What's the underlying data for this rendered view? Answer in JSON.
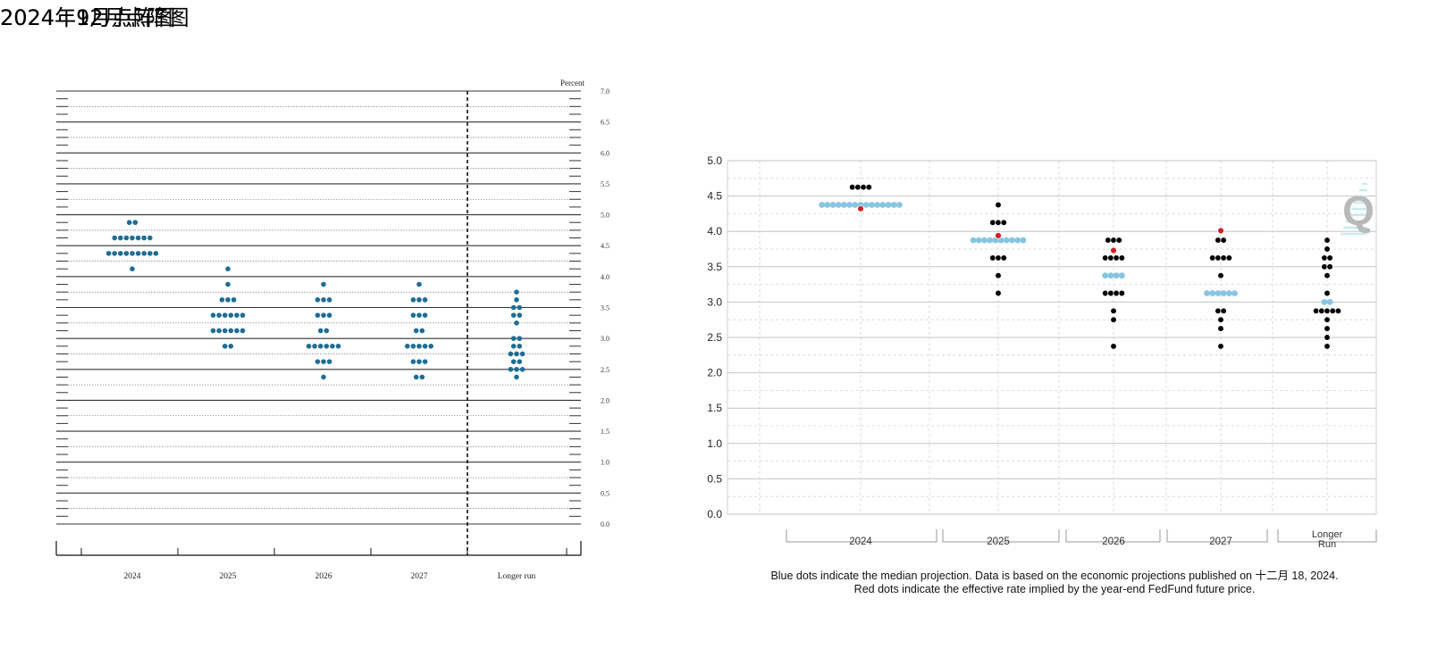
{
  "titles": {
    "sep": "2024年9月点阵图",
    "dec": "2024年12月点阵图"
  },
  "captions": {
    "line1": "Blue dots indicate the median projection. Data is based on the economic projections published on 十二月 18, 2024.",
    "line2": "Red dots indicate the effective rate implied by the year-end FedFund future price."
  },
  "watermark": "Q",
  "chart_data": [
    {
      "type": "scatter",
      "title": "2024年9月点阵图",
      "ylabel": "Percent",
      "ylim": [
        0,
        7
      ],
      "yticks": [
        "0.0",
        "0.5",
        "1.0",
        "1.5",
        "2.0",
        "2.5",
        "3.0",
        "3.5",
        "4.0",
        "4.5",
        "5.0",
        "5.5",
        "6.0",
        "6.5",
        "7.0"
      ],
      "categories": [
        "2024",
        "2025",
        "2026",
        "2027",
        "Longer run"
      ],
      "dot_color": "#1e6d95",
      "grid": true,
      "divider_before": "Longer run",
      "series": [
        {
          "category": "2024",
          "dots": [
            {
              "y": 4.875,
              "n": 2
            },
            {
              "y": 4.625,
              "n": 7
            },
            {
              "y": 4.375,
              "n": 9
            },
            {
              "y": 4.125,
              "n": 1
            }
          ]
        },
        {
          "category": "2025",
          "dots": [
            {
              "y": 4.125,
              "n": 1
            },
            {
              "y": 3.875,
              "n": 1
            },
            {
              "y": 3.625,
              "n": 3
            },
            {
              "y": 3.375,
              "n": 6
            },
            {
              "y": 3.125,
              "n": 6
            },
            {
              "y": 2.875,
              "n": 2
            }
          ]
        },
        {
          "category": "2026",
          "dots": [
            {
              "y": 3.875,
              "n": 1
            },
            {
              "y": 3.625,
              "n": 3
            },
            {
              "y": 3.375,
              "n": 3
            },
            {
              "y": 3.125,
              "n": 2
            },
            {
              "y": 2.875,
              "n": 6
            },
            {
              "y": 2.625,
              "n": 3
            },
            {
              "y": 2.375,
              "n": 1
            }
          ]
        },
        {
          "category": "2027",
          "dots": [
            {
              "y": 3.875,
              "n": 1
            },
            {
              "y": 3.625,
              "n": 3
            },
            {
              "y": 3.375,
              "n": 3
            },
            {
              "y": 3.125,
              "n": 2
            },
            {
              "y": 2.875,
              "n": 5
            },
            {
              "y": 2.625,
              "n": 3
            },
            {
              "y": 2.375,
              "n": 2
            }
          ]
        },
        {
          "category": "Longer run",
          "dots": [
            {
              "y": 3.75,
              "n": 1
            },
            {
              "y": 3.625,
              "n": 1
            },
            {
              "y": 3.5,
              "n": 2
            },
            {
              "y": 3.375,
              "n": 2
            },
            {
              "y": 3.25,
              "n": 1
            },
            {
              "y": 3.0,
              "n": 2
            },
            {
              "y": 2.875,
              "n": 2
            },
            {
              "y": 2.75,
              "n": 3
            },
            {
              "y": 2.625,
              "n": 2
            },
            {
              "y": 2.5,
              "n": 3
            },
            {
              "y": 2.375,
              "n": 1
            }
          ]
        }
      ]
    },
    {
      "type": "scatter",
      "title": "2024年12月点阵图",
      "ylim": [
        0,
        5
      ],
      "yticks": [
        "0.0",
        "0.5",
        "1.0",
        "1.5",
        "2.0",
        "2.5",
        "3.0",
        "3.5",
        "4.0",
        "4.5",
        "5.0"
      ],
      "categories": [
        "2024",
        "2025",
        "2026",
        "2027",
        "Longer Run"
      ],
      "colors": {
        "dot": "#000000",
        "median": "#87c5e2",
        "implied": "#d42020"
      },
      "grid": true,
      "series": [
        {
          "category": "2024",
          "dots": [
            {
              "y": 4.625,
              "n": 4
            },
            {
              "y": 4.375,
              "n": 15
            }
          ],
          "median": 4.375,
          "implied": 4.32
        },
        {
          "category": "2025",
          "dots": [
            {
              "y": 4.375,
              "n": 1
            },
            {
              "y": 4.125,
              "n": 3
            },
            {
              "y": 3.875,
              "n": 10
            },
            {
              "y": 3.625,
              "n": 3
            },
            {
              "y": 3.375,
              "n": 1
            },
            {
              "y": 3.125,
              "n": 1
            }
          ],
          "median": 3.875,
          "implied": 3.94
        },
        {
          "category": "2026",
          "dots": [
            {
              "y": 3.875,
              "n": 3
            },
            {
              "y": 3.625,
              "n": 4
            },
            {
              "y": 3.375,
              "n": 4
            },
            {
              "y": 3.125,
              "n": 4
            },
            {
              "y": 2.875,
              "n": 1
            },
            {
              "y": 2.75,
              "n": 1
            },
            {
              "y": 2.375,
              "n": 1
            }
          ],
          "median": 3.375,
          "implied": 3.73
        },
        {
          "category": "2027",
          "dots": [
            {
              "y": 3.875,
              "n": 2
            },
            {
              "y": 3.625,
              "n": 4
            },
            {
              "y": 3.375,
              "n": 1
            },
            {
              "y": 3.125,
              "n": 6
            },
            {
              "y": 2.875,
              "n": 2
            },
            {
              "y": 2.75,
              "n": 1
            },
            {
              "y": 2.625,
              "n": 1
            },
            {
              "y": 2.375,
              "n": 1
            }
          ],
          "median": 3.125,
          "implied": 4.01
        },
        {
          "category": "Longer Run",
          "dots": [
            {
              "y": 3.875,
              "n": 1
            },
            {
              "y": 3.75,
              "n": 1
            },
            {
              "y": 3.625,
              "n": 2
            },
            {
              "y": 3.5,
              "n": 2
            },
            {
              "y": 3.375,
              "n": 1
            },
            {
              "y": 3.125,
              "n": 1
            },
            {
              "y": 3.0,
              "n": 2
            },
            {
              "y": 2.875,
              "n": 5
            },
            {
              "y": 2.75,
              "n": 1
            },
            {
              "y": 2.625,
              "n": 1
            },
            {
              "y": 2.5,
              "n": 1
            },
            {
              "y": 2.375,
              "n": 1
            }
          ],
          "median": 3.0
        }
      ]
    }
  ]
}
